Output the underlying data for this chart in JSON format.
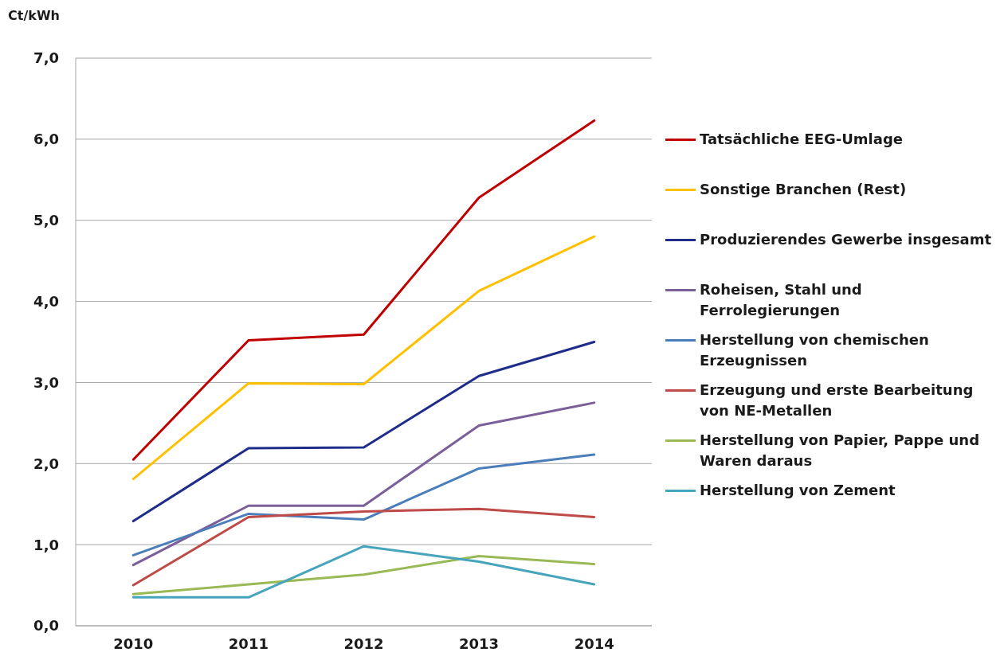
{
  "chart_data": {
    "type": "line",
    "ylabel": "Ct/kWh",
    "categories": [
      "2010",
      "2011",
      "2012",
      "2013",
      "2014"
    ],
    "ylim": [
      0,
      7
    ],
    "yticks": [
      {
        "value": 0,
        "label": "0,0"
      },
      {
        "value": 1,
        "label": "1,0"
      },
      {
        "value": 2,
        "label": "2,0"
      },
      {
        "value": 3,
        "label": "3,0"
      },
      {
        "value": 4,
        "label": "4,0"
      },
      {
        "value": 5,
        "label": "5,0"
      },
      {
        "value": 6,
        "label": "6,0"
      },
      {
        "value": 7,
        "label": "7,0"
      }
    ],
    "grid": "y",
    "legend": "right",
    "series": [
      {
        "name": "Tatsächliche EEG-Umlage",
        "color": "#c00000",
        "values": [
          2.05,
          3.52,
          3.59,
          5.28,
          6.23
        ]
      },
      {
        "name": "Sonstige Branchen (Rest)",
        "color": "#ffc000",
        "values": [
          1.81,
          2.99,
          2.98,
          4.13,
          4.8
        ]
      },
      {
        "name": "Produzierendes Gewerbe insgesamt",
        "color": "#1f2d8a",
        "values": [
          1.29,
          2.19,
          2.2,
          3.08,
          3.5
        ]
      },
      {
        "name": "Roheisen, Stahl und Ferrolegierungen",
        "color": "#7b5f99",
        "values": [
          0.75,
          1.48,
          1.48,
          2.47,
          2.75
        ]
      },
      {
        "name": "Herstellung von chemischen Erzeugnissen",
        "color": "#4a7ebb",
        "values": [
          0.87,
          1.38,
          1.31,
          1.94,
          2.11
        ]
      },
      {
        "name": "Erzeugung und erste Bearbeitung von NE-Metallen",
        "color": "#be4b48",
        "values": [
          0.5,
          1.34,
          1.41,
          1.44,
          1.34
        ]
      },
      {
        "name": "Herstellung von Papier, Pappe und Waren daraus",
        "color": "#98b954",
        "values": [
          0.39,
          0.51,
          0.63,
          0.86,
          0.76
        ]
      },
      {
        "name": "Herstellung von Zement",
        "color": "#46a5bd",
        "values": [
          0.35,
          0.35,
          0.98,
          0.79,
          0.51
        ]
      }
    ]
  }
}
